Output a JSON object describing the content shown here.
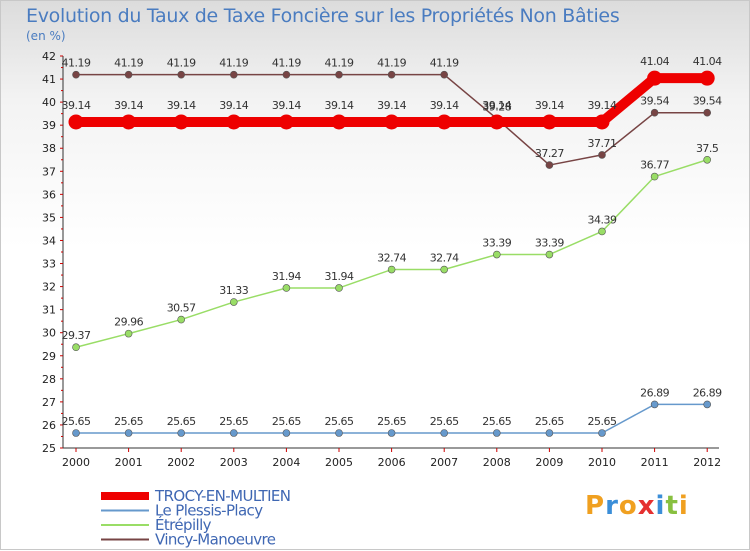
{
  "chart_data": {
    "type": "line",
    "title": "Evolution du Taux de Taxe Foncière sur les Propriétés Non Bâties",
    "ylabel": "(en %)",
    "xlabel": "",
    "categories": [
      "2000",
      "2001",
      "2002",
      "2003",
      "2004",
      "2005",
      "2006",
      "2007",
      "2008",
      "2009",
      "2010",
      "2011",
      "2012"
    ],
    "ylim": [
      25,
      42
    ],
    "yticks": [
      "25",
      "26",
      "27",
      "28",
      "29",
      "30",
      "31",
      "32",
      "33",
      "34",
      "35",
      "36",
      "37",
      "38",
      "39",
      "40",
      "41",
      "42"
    ],
    "grid": false,
    "legend_position": "bottom-left",
    "series": [
      {
        "name": "TROCY-EN-MULTIEN",
        "color": "#ee0000",
        "values": [
          39.14,
          39.14,
          39.14,
          39.14,
          39.14,
          39.14,
          39.14,
          39.14,
          39.14,
          39.14,
          39.14,
          41.04,
          41.04
        ],
        "labels": [
          "39.14",
          "39.14",
          "39.14",
          "39.14",
          "39.14",
          "39.14",
          "39.14",
          "39.14",
          "39.14",
          "39.14",
          "39.14",
          "41.04",
          "41.04"
        ]
      },
      {
        "name": "Le Plessis-Placy",
        "color": "#6699cc",
        "values": [
          25.65,
          25.65,
          25.65,
          25.65,
          25.65,
          25.65,
          25.65,
          25.65,
          25.65,
          25.65,
          25.65,
          26.89,
          26.89
        ],
        "labels": [
          "25.65",
          "25.65",
          "25.65",
          "25.65",
          "25.65",
          "25.65",
          "25.65",
          "25.65",
          "25.65",
          "25.65",
          "25.65",
          "26.89",
          "26.89"
        ]
      },
      {
        "name": "Étrépilly",
        "color": "#99dd66",
        "values": [
          29.37,
          29.96,
          30.57,
          31.33,
          31.94,
          31.94,
          32.74,
          32.74,
          33.39,
          33.39,
          34.39,
          36.77,
          37.5
        ],
        "labels": [
          "29.37",
          "29.96",
          "30.57",
          "31.33",
          "31.94",
          "31.94",
          "32.74",
          "32.74",
          "33.39",
          "33.39",
          "34.39",
          "36.77",
          "37.5"
        ]
      },
      {
        "name": "Vincy-Manoeuvre",
        "color": "#774444",
        "values": [
          41.19,
          41.19,
          41.19,
          41.19,
          41.19,
          41.19,
          41.19,
          41.19,
          39.28,
          37.27,
          37.71,
          39.54,
          39.54
        ],
        "labels": [
          "41.19",
          "41.19",
          "41.19",
          "41.19",
          "41.19",
          "41.19",
          "41.19",
          "41.19",
          "39.28",
          "37.27",
          "37.71",
          "39.54",
          "39.54"
        ]
      }
    ]
  },
  "branding": {
    "logo_letters": [
      "P",
      "r",
      "o",
      "x",
      "i",
      "t",
      "i"
    ],
    "logo_colors": [
      "#f0a020",
      "#3b8ed8",
      "#f0a020",
      "#e53030",
      "#3b8ed8",
      "#88c040",
      "#f0a020"
    ]
  }
}
